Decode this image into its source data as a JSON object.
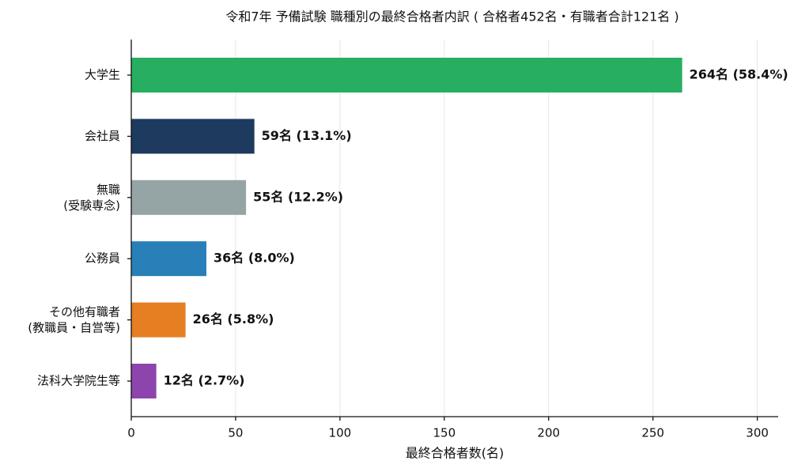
{
  "chart_data": {
    "type": "barh",
    "title": "令和7年 予備試験 職種別の最終合格者内訳 ( 合格者452名・有職者合計121名 )",
    "xlabel": "最終合格者数(名)",
    "categories": [
      "大学生",
      "会社員",
      "無職\n(受験専念)",
      "公務員",
      "その他有職者\n(教職員・自営等)",
      "法科大学院生等"
    ],
    "values": [
      264,
      59,
      55,
      36,
      26,
      12
    ],
    "value_labels": [
      "264名 (58.4%)",
      "59名 (13.1%)",
      "55名 (12.2%)",
      "36名 (8.0%)",
      "26名 (5.8%)",
      "12名 (2.7%)"
    ],
    "colors": [
      "#27ae60",
      "#1f3a5f",
      "#95a5a6",
      "#2980b9",
      "#e67e22",
      "#8e44ad"
    ],
    "xlim": [
      0,
      310
    ],
    "xticks": [
      0,
      50,
      100,
      150,
      200,
      250,
      300
    ],
    "grid": true
  }
}
